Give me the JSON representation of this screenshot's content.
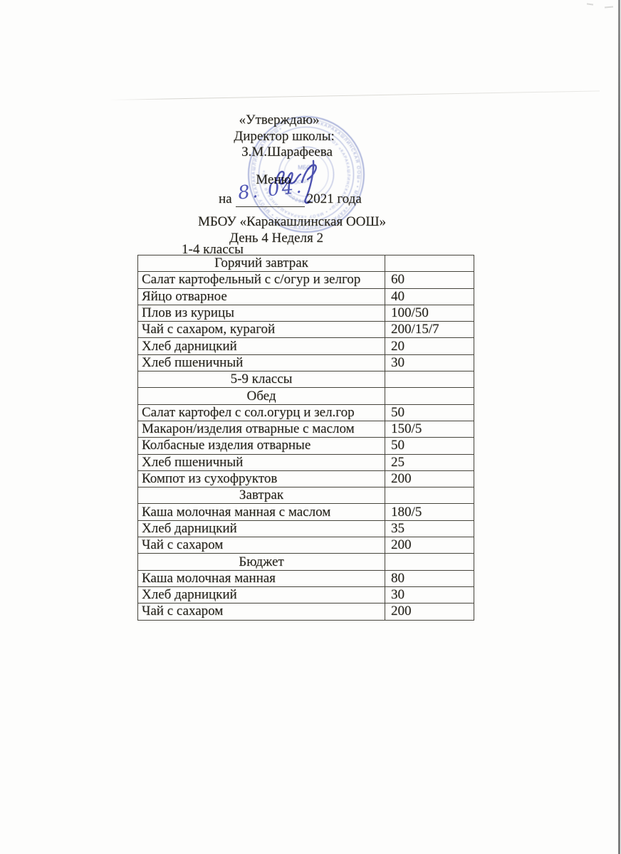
{
  "colors": {
    "stamp": "#7e8bc9",
    "ink": "#4046ad",
    "text": "#26241d",
    "border": "#46443b",
    "paper": "#fdfdfc"
  },
  "header": {
    "approve": "«Утверждаю»",
    "director_label": "Директор школы:",
    "director_name": "З.М.Шарафеева",
    "menu_title": "Меню",
    "date_prefix": "на",
    "date_handwritten": "8. 04.",
    "date_suffix": "2021 года",
    "school_name": "МБОУ «Каракашлинская ООШ»",
    "day_week": "День 4 Неделя 2"
  },
  "stamp": {
    "ring_text_outer": "• МБОУ «КАРАКАШЛИНСКАЯ ООШ» • МБОУ «КАРАКАШЛИНСКАЯ ООШ» • МБОУ «КАРАКАШЛИНСКАЯ ООШ»",
    "ring_text_inner": "• МБОУ «КАРАКАШЛИНСКАЯ ООШ» • МБОУ «КАРАКАШЛИНСКАЯ ООШ»",
    "number": "42002903",
    "center_line1": "МБОУ",
    "center_line2": "ООШ»"
  },
  "menu": {
    "grades_label": "1-4 классы",
    "rows": [
      {
        "type": "section",
        "label": "Горячий завтрак",
        "qty": ""
      },
      {
        "type": "item",
        "label": "Салат картофельный с с/огур и зелгор",
        "qty": "60"
      },
      {
        "type": "item",
        "label": "Яйцо отварное",
        "qty": "40"
      },
      {
        "type": "item",
        "label": "Плов из курицы",
        "qty": "100/50"
      },
      {
        "type": "item",
        "label": "Чай с сахаром, курагой",
        "qty": "200/15/7"
      },
      {
        "type": "item",
        "label": "Хлеб дарницкий",
        "qty": "20"
      },
      {
        "type": "item",
        "label": "Хлеб пшеничный",
        "qty": "30"
      },
      {
        "type": "section",
        "label": "5-9 классы",
        "qty": ""
      },
      {
        "type": "section",
        "label": "Обед",
        "qty": ""
      },
      {
        "type": "item",
        "label": "Салат картофел с сол.огурц и зел.гор",
        "qty": "50"
      },
      {
        "type": "item",
        "label": "Макарон/изделия отварные с маслом",
        "qty": "150/5"
      },
      {
        "type": "item",
        "label": "Колбасные изделия отварные",
        "qty": "50"
      },
      {
        "type": "item",
        "label": "Хлеб пшеничный",
        "qty": "25"
      },
      {
        "type": "item",
        "label": "Компот из сухофруктов",
        "qty": "200"
      },
      {
        "type": "section",
        "label": "Завтрак",
        "qty": ""
      },
      {
        "type": "item",
        "label": "Каша молочная манная с маслом",
        "qty": "180/5"
      },
      {
        "type": "item",
        "label": "Хлеб дарницкий",
        "qty": "35"
      },
      {
        "type": "item",
        "label": "Чай с сахаром",
        "qty": "200"
      },
      {
        "type": "section",
        "label": "Бюджет",
        "qty": ""
      },
      {
        "type": "item",
        "label": "Каша молочная манная",
        "qty": "80"
      },
      {
        "type": "item",
        "label": "Хлеб дарницкий",
        "qty": "30"
      },
      {
        "type": "item",
        "label": "Чай с сахаром",
        "qty": "200"
      }
    ]
  }
}
